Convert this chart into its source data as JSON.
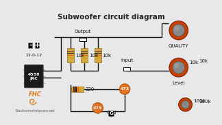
{
  "title": "Subwoofer circuit diagram",
  "bg_color": "#e8e8e8",
  "title_color": "#222222",
  "title_fontsize": 7.5,
  "wire_color": "#111111",
  "resistor_body": "#d4a843",
  "resistor_band_dark": "#5a3010",
  "resistor_band_orange": "#e07020",
  "pot_body_orange": "#c84000",
  "pot_body_gray": "#888888",
  "ic_body": "#222222",
  "ic_text": "#ffffff",
  "logo_color": "#e07820",
  "watermark_text": "Electronicshelpcare.net",
  "labels": {
    "output": "Output",
    "input": "Input",
    "gnd": "Gnd",
    "quality": "QUALITY",
    "level": "Level",
    "r1": "10k",
    "r2": "10k",
    "r3": "10k",
    "r4": "220",
    "c1": "473",
    "c2": "473",
    "pot1": "10k",
    "pot2": "100k",
    "ic": "4558\nJRC",
    "power": "12-0-12"
  }
}
